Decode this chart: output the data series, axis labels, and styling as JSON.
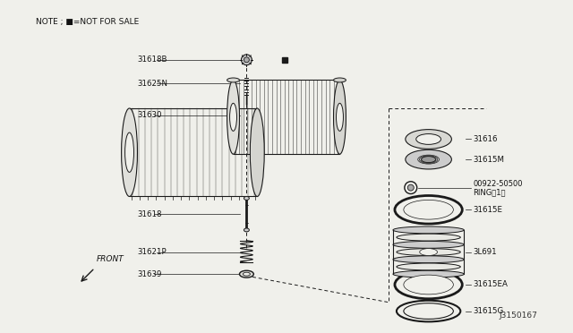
{
  "bg_color": "#f0f0eb",
  "note_text": "NOTE ; ■=NOT FOR SALE",
  "diagram_id": "J3150167",
  "left_labels": [
    [
      0.84,
      "31618B"
    ],
    [
      0.76,
      "31625N"
    ],
    [
      0.635,
      "31630"
    ],
    [
      0.45,
      "31618"
    ],
    [
      0.33,
      "31621P"
    ],
    [
      0.255,
      "31639"
    ]
  ],
  "right_labels": [
    [
      0.77,
      "31616"
    ],
    [
      0.71,
      "31615M"
    ],
    [
      0.62,
      "00922-50500\nRING（1）"
    ],
    [
      0.53,
      "31615E"
    ],
    [
      0.4,
      "3L691"
    ],
    [
      0.255,
      "31615EA"
    ],
    [
      0.13,
      "31615G"
    ]
  ],
  "front_label": "FRONT",
  "dark": "#1a1a1a",
  "gray": "#888888"
}
